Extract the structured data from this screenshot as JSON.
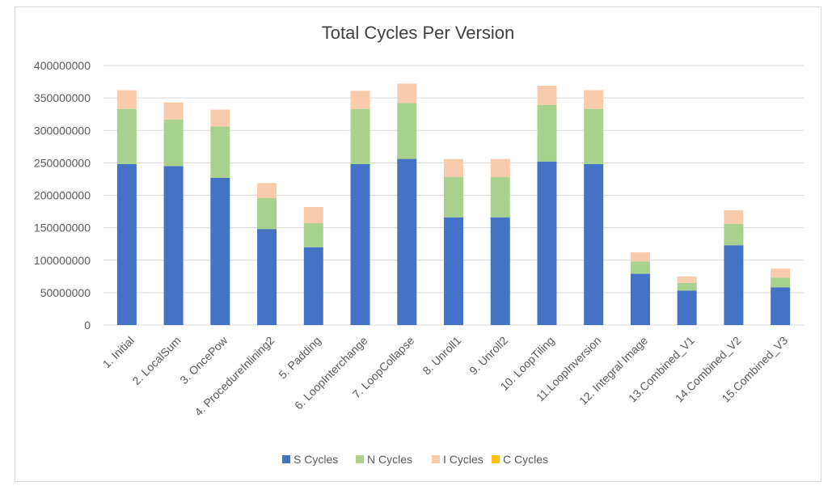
{
  "chart_data": {
    "type": "bar",
    "stacked": true,
    "title": "Total Cycles Per Version",
    "xlabel": "",
    "ylabel": "",
    "ylim": [
      0,
      400000000
    ],
    "yticks": [
      "0",
      "50000000",
      "100000000",
      "150000000",
      "200000000",
      "250000000",
      "300000000",
      "350000000",
      "400000000"
    ],
    "grid": true,
    "legend_position": "bottom",
    "categories": [
      "1. Initial",
      "2. LocalSum",
      "3. OncePow",
      "4. ProcedureInlining2",
      "5. Padding",
      "6. LoopInterchange",
      "7. LoopCollapse",
      "8. Unroll1",
      "9. Unroll2",
      "10. LoopTiling",
      "11.LoopInversion",
      "12. Integral Image",
      "13.Combined_V1",
      "14.Combined_V2",
      "15.Combined_V3"
    ],
    "series": [
      {
        "name": "S Cycles",
        "color": "#4472c4",
        "values": [
          248000000,
          245000000,
          227000000,
          148000000,
          120000000,
          248000000,
          256000000,
          166000000,
          166000000,
          252000000,
          248000000,
          79000000,
          53000000,
          123000000,
          58000000
        ]
      },
      {
        "name": "N Cycles",
        "color": "#a9d18e",
        "values": [
          85000000,
          72000000,
          79000000,
          48000000,
          37000000,
          85000000,
          86000000,
          62000000,
          62000000,
          87000000,
          85000000,
          19000000,
          12000000,
          33000000,
          15000000
        ]
      },
      {
        "name": "I Cycles",
        "color": "#f8cbad",
        "values": [
          29000000,
          26000000,
          26000000,
          23000000,
          25000000,
          28000000,
          30000000,
          28000000,
          28000000,
          30000000,
          29000000,
          14000000,
          10000000,
          21000000,
          14000000
        ]
      },
      {
        "name": "C Cycles",
        "color": "#ffc000",
        "values": [
          0,
          0,
          0,
          0,
          0,
          0,
          0,
          0,
          0,
          0,
          0,
          0,
          0,
          0,
          0
        ]
      }
    ]
  }
}
